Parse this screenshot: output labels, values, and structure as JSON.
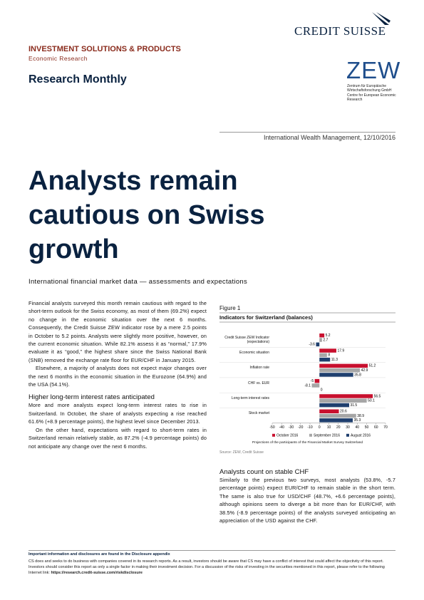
{
  "header": {
    "brand": "CREDIT SUISSE",
    "division": "INVESTMENT SOLUTIONS & PRODUCTS",
    "department": "Economic Research",
    "publication": "Research Monthly",
    "zew_logo": "ZEW",
    "zew_name": "Zentrum für Europäische Wirtschaftsforschung GmbH",
    "zew_name_en": "Centre for European Economic Research"
  },
  "dateline": "International Wealth Management, 12/10/2016",
  "title": "Analysts remain cautious on Swiss growth",
  "subtitle": "International financial market data — assessments and expectations",
  "intro": [
    "Financial analysts surveyed this month remain cautious with regard to the short-term outlook for the Swiss economy, as most of them (69.2%) expect no change in the economic situation over the next 6 months. Consequently, the Credit Suisse ZEW indicator rose by a mere 2.5 points in October to 5.2 points. Analysts were slightly more positive, however, on the current economic situation. While 82.1% assess it as “normal,” 17.9% evaluate it as “good,” the highest share since the Swiss National Bank (SNB) removed the exchange rate floor for EUR/CHF in January 2015.",
    "Elsewhere, a majority of analysts does not expect major changes over the next 6 months in the economic situation in the Eurozone (64.9%) and the USA (54.1%)."
  ],
  "section1": {
    "heading": "Higher long-term interest rates anticipated",
    "paragraphs": [
      "More and more analysts expect long-term interest rates to rise in Switzerland. In October, the share of analysts expecting a rise reached 61.6% (+8.9 percentage points), the highest level since December 2013.",
      "On the other hand, expectations with regard to short-term rates in Switzerland remain relatively stable, as 87.2% (-4.9 percentage points) do not anticipate any change over the next 6 months."
    ]
  },
  "section2": {
    "heading": "Analysts count on stable CHF",
    "paragraphs": [
      "Similarly to the previous two surveys, most analysts (53.8%, -5.7 percentage points) expect EUR/CHF to remain stable in the short term. The same is also true for USD/CHF (48.7%, +6.6 percentage points), although opinions seem to diverge a bit more than for EUR/CHF, with 38.5% (-8.9 percentage points) of the analysts surveyed anticipating an appreciation of the USD against the CHF."
    ]
  },
  "footer": {
    "notice": "Important information and disclosures are found in the Disclosure appendix",
    "disclaimer": "CS does and seeks to do business with companies covered in its research reports. As a result, investors should be aware that CS may have a conflict of interest that could affect the objectivity of this report. Investors should consider this report as only a single factor in making their investment decision. For a discussion of the risks of investing in the securities mentioned in this report, please refer to the following Internet link:",
    "link": "https://research.credit-suisse.com/riskdisclosure"
  },
  "chart_data": {
    "type": "bar",
    "orientation": "horizontal",
    "label": "Figure 1",
    "title": "Indicators for Switzerland (balances)",
    "categories": [
      "Credit Suisse ZEW Indicator (expectations)",
      "Economic situation",
      "Inflation rate",
      "CHF vs. EUR",
      "Long-term interest rates",
      "Stock market"
    ],
    "series": [
      {
        "name": "October 2016",
        "color": "#c8102e",
        "values": [
          5.2,
          17.9,
          51.2,
          -5,
          56.5,
          20.6
        ]
      },
      {
        "name": "September 2016",
        "color": "#a6a6a6",
        "values": [
          2.7,
          8,
          42.9,
          -8.1,
          50.1,
          38.9
        ]
      },
      {
        "name": "August 2016",
        "color": "#1f3f6e",
        "values": [
          -3.6,
          11.3,
          35.8,
          0,
          31.5,
          35.3
        ]
      }
    ],
    "xlim": [
      -50,
      70
    ],
    "xticks": [
      -50,
      -40,
      -30,
      -20,
      -10,
      0,
      10,
      20,
      30,
      40,
      50,
      60,
      70
    ],
    "note": "Projections of the participants of the Financial Market Survey Switzerland",
    "source": "Source: ZEW, Credit Suisse"
  }
}
